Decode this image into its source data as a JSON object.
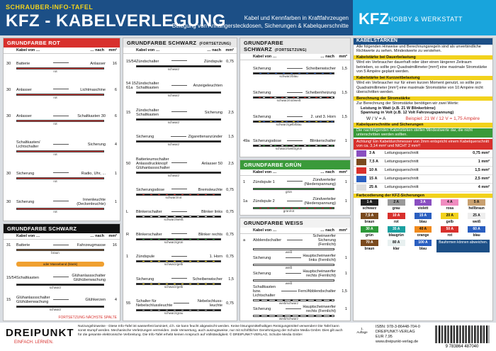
{
  "header": {
    "series": "SCHRAUBER-INFO-TAFEL",
    "title": "KFZ - KABELVERLEGUNG",
    "lines": [
      "Kabel und Kennfarben in Kraftfahrzeugen",
      "Belegung von Anhängersteckdosen, Sicherungen & Kabelquerschnitte"
    ]
  },
  "brand": {
    "kfz": "KFZ",
    "tag": "HOBBY & WERKSTATT"
  },
  "labels": {
    "from": "Kabel von …",
    "to": "… nach",
    "unit": "mm²"
  },
  "columns": [
    [
      {
        "title": "GRUNDFARBE ROT",
        "color": "#d8302c",
        "text_color": "#fff",
        "rows": [
          {
            "terminal": "30",
            "from": "Batterie",
            "to": "Anlasser",
            "mm": "16",
            "wires": [
              {
                "label": "rot",
                "colors": [
                  "#d8302c"
                ]
              }
            ]
          },
          {
            "terminal": "30",
            "from": "Anlasser",
            "to": "Lichtmaschine",
            "mm": "6",
            "wires": [
              {
                "label": "rot",
                "colors": [
                  "#d8302c"
                ]
              }
            ]
          },
          {
            "terminal": "30",
            "from": "Anlasser",
            "to": "Schaltkasten 30",
            "mm": "6",
            "wires": [
              {
                "label": "rot",
                "colors": [
                  "#d8302c"
                ]
              }
            ]
          },
          {
            "from": "Schaltkasten/ Lichtschalter",
            "to": "Sicherung",
            "mm": "4",
            "wires": [
              {
                "label": "rot",
                "colors": [
                  "#d8302c"
                ]
              }
            ]
          },
          {
            "terminal": "30",
            "from": "Sicherung",
            "to": "Radio, Uhr, ...",
            "mm": "1",
            "wires": [
              {
                "label": "rot",
                "colors": [
                  "#d8302c"
                ]
              }
            ]
          },
          {
            "terminal": "30",
            "from": "Sicherung",
            "to": "Innenleuchte (Deckenleuchte)",
            "mm": "1",
            "wires": [
              {
                "label": "rot",
                "colors": [
                  "#d8302c"
                ]
              }
            ]
          }
        ]
      },
      {
        "title": "GRUNDFARBE SCHWARZ",
        "color": "#111",
        "text_color": "#fff",
        "rows": [
          {
            "terminal": "31",
            "from": "Batterie",
            "to": "Fahrzeugmasse",
            "mm": "16",
            "wires": [
              {
                "label": "braun",
                "colors": [
                  "#7a4a1e"
                ]
              }
            ]
          },
          {
            "band": "oder Masseband (blank)"
          },
          {
            "terminal": "15/54",
            "from": "Schaltkasten",
            "to": "Glühanlassschalter Glühüberwachung",
            "wires": [
              {
                "label": "schwarz",
                "colors": [
                  "#111"
                ]
              }
            ]
          },
          {
            "terminal": "15",
            "from": "Glühanlassschalter Glühüberwachung",
            "to": "Glühkerzen",
            "mm": "4",
            "wires": [
              {
                "label": "schwarz",
                "colors": [
                  "#111"
                ]
              }
            ]
          }
        ],
        "note": "FORTSETZUNG NÄCHSTE SPALTE"
      }
    ],
    [
      {
        "title": "GRUNDFARBE SCHWARZ",
        "subtitle": "(FORTSETZUNG)",
        "color": "#e8e8e8",
        "text_color": "#111",
        "rows": [
          {
            "terminal": "15/54",
            "from": "Zündschalter",
            "to": "Zündspule",
            "mm": "0,75",
            "wires": [
              {
                "label": "schwarz",
                "colors": [
                  "#111"
                ]
              }
            ]
          },
          {
            "terminal": "54 15 61a",
            "from": "Zündschalter Schaltkasten",
            "to": "Anzeigeleuchten",
            "wires": [
              {
                "label": "schwarz",
                "colors": [
                  "#111"
                ]
              }
            ]
          },
          {
            "terminal": "15",
            "from": "Zündschalter Schaltkasten",
            "to": "Sicherung",
            "mm": "2,5",
            "wires": [
              {
                "label": "schwarz",
                "colors": [
                  "#111"
                ]
              }
            ]
          },
          {
            "from": "Sicherung",
            "to": "Zigarettenanzünder",
            "mm": "1,5",
            "wires": [
              {
                "label": "schwarz",
                "colors": [
                  "#111"
                ]
              }
            ]
          },
          {
            "terminal": "50",
            "from": "Batterieumschalter Anlassdruckknopf Glühanlassschalter",
            "to": "Anlasser 50",
            "mm": "2,5",
            "wires": [
              {
                "label": "schwarz",
                "colors": [
                  "#111"
                ]
              }
            ]
          },
          {
            "from": "Sicherungsdose",
            "to": "Bremsleuchte",
            "mm": "0,75",
            "wires": [
              {
                "label": "schwarz/rot",
                "colors": [
                  "#111",
                  "#d8302c"
                ]
              }
            ]
          },
          {
            "terminal": "L",
            "from": "Blinkerschalter",
            "to": "Blinker links",
            "mm": "0,75",
            "wires": [
              {
                "label": "schwarz/weiß",
                "colors": [
                  "#111",
                  "#fff"
                ]
              }
            ]
          },
          {
            "terminal": "R",
            "from": "Blinkerschalter",
            "to": "Blinker rechts",
            "mm": "0,75",
            "wires": [
              {
                "label": "schwarz/grün",
                "colors": [
                  "#111",
                  "#2e9a3a"
                ]
              }
            ]
          },
          {
            "terminal": "1",
            "from": "Zündspule",
            "to": "1. Horn",
            "mm": "0,75",
            "wires": [
              {
                "label": "schwarz/gelb",
                "colors": [
                  "#111",
                  "#f2d21c"
                ]
              }
            ]
          },
          {
            "from": "Sicherung",
            "to": "Scheibenwischer",
            "mm": "1,5",
            "wires": [
              {
                "label": "schwarz/gelb",
                "colors": [
                  "#111",
                  "#f2d21c"
                ]
              }
            ]
          },
          {
            "terminal": "55",
            "from": "Schalter für Nebelschlussleuchte",
            "to": "Nebelschluss-leuchte",
            "mm": "0,75",
            "wires": [
              {
                "label": "schwarz/grau",
                "colors": [
                  "#111",
                  "#999"
                ]
              }
            ]
          }
        ]
      }
    ],
    [
      {
        "title": "GRUNDFARBE SCHWARZ",
        "subtitle": "(FORTSETZUNG)",
        "color": "#e8e8e8",
        "text_color": "#111",
        "rows": [
          {
            "from": "Sicherung",
            "to": "Scheibenwischer",
            "mm": "1,5",
            "wires": [
              {
                "label": "schwarz/blau",
                "colors": [
                  "#111",
                  "#2a5fc0"
                ]
              }
            ]
          },
          {
            "from": "Sicherung",
            "to": "Scheibenheizung",
            "mm": "1,5",
            "wires": [
              {
                "label": "schwarz/rot/weiß",
                "colors": [
                  "#111",
                  "#d8302c",
                  "#fff"
                ]
              }
            ]
          },
          {
            "from": "Sicherung",
            "to": "2. und 3. Horn",
            "mm": "1,5",
            "wires": [
              {
                "label": "schwarz/gelb/blau",
                "colors": [
                  "#111",
                  "#f2d21c",
                  "#2a5fc0"
                ]
              }
            ]
          },
          {
            "terminal": "49a",
            "from": "Sicherungsdose",
            "to": "Blinkerschalter",
            "mm": "1",
            "wires": [
              {
                "label": "schwarz/weiß/grün",
                "colors": [
                  "#111",
                  "#fff",
                  "#2e9a3a"
                ]
              }
            ]
          }
        ]
      },
      {
        "title": "GRUNDFARBE GRÜN",
        "color": "#3a9a3a",
        "text_color": "#fff",
        "rows": [
          {
            "terminal": "1",
            "from": "Zündspule 1",
            "to": "Zündverteiler (Niederspannung)",
            "mm": "1",
            "wires": [
              {
                "label": "grün",
                "colors": [
                  "#2e9a3a"
                ]
              }
            ]
          },
          {
            "terminal": "1a",
            "from": "Zündspule 2",
            "to": "Zündverteiler (Niederspannung)",
            "mm": "1",
            "wires": [
              {
                "label": "grün/rot",
                "colors": [
                  "#2e9a3a",
                  "#d8302c"
                ]
              }
            ]
          }
        ]
      },
      {
        "title": "GRUNDFARBE WEISS",
        "color": "#f2f2f2",
        "text_color": "#111",
        "rows": [
          {
            "terminal": "a",
            "from": "Abblendschalter",
            "to": "Scheinwerfer Sicherung (Fernlicht)",
            "wires": [
              {
                "label": "weiß",
                "colors": [
                  "#fff"
                ]
              }
            ]
          },
          {
            "from": "Sicherung",
            "to": "Hauptscheinwerfer links (Fernlicht)",
            "mm": "1",
            "wires": [
              {
                "label": "weiß",
                "colors": [
                  "#fff"
                ]
              }
            ]
          },
          {
            "from": "Sicherung",
            "to": "Hauptscheinwerfer rechts (Fernlicht)",
            "mm": "1",
            "wires": [
              {
                "label": "weiß",
                "colors": [
                  "#fff"
                ]
              }
            ]
          },
          {
            "from": "Schaltkasten bzw. Lichtschalter",
            "to": "Fern/Abblendschalter",
            "mm": "1,5",
            "wires": [
              {
                "label": "weiß/schwarz",
                "colors": [
                  "#fff",
                  "#111"
                ]
              }
            ]
          },
          {
            "from": "Sicherung",
            "to": "Hauptscheinwerfer rechts (Fernlicht)",
            "mm": "1",
            "wires": [
              {
                "label": "weiß/schwarz",
                "colors": [
                  "#fff",
                  "#111"
                ]
              }
            ]
          }
        ]
      }
    ]
  ],
  "sidebar": {
    "title": "KABELSTÄRKEN",
    "intro": "Alle folgenden Hinweise und Berechnungsregeln sind als unverbindliche Richtwerte zu sehen. Mindestwerte zu verstehen.",
    "h1": "Kabelstärke bei Dauerbelastung",
    "p1": "Wird ein Verbraucher dauerhaft oder über einen längeren Zeitraum betrieben, so sollte pro Quadratmillimeter [mm²] eine maximale Stromstärke von 5 Ampère geplant werden.",
    "h2": "Kabelstärke bei Kurzzeitbelastung",
    "p2": "Wird ein Verbraucher nur für einen kurzen Moment genutzt, so sollte pro Quadratmillimeter [mm²] eine maximale Stromstärke von 10 Ampère nicht überschritten werden.",
    "h3": "Berechnung der Stromstärke",
    "p3": "Zur Berechnung der Stromstärke benötigen wir zwei Werte:",
    "bullets": [
      "Leistung in Watt (z.B. 21 W Blinkerbirne)",
      "Spannung in Volt (z.B. 12 Volt Fahrzeugspannung)"
    ],
    "formula": "W / V = A",
    "example": "Beispiel: 21 W / 12 V = 1,75 Ampère",
    "h4": "Kabelquerschnitte und Sicherungen",
    "p4": "Die nachfolgenden Kabelstärken stellen Mindestwerte dar, die nicht unterschritten werden sollten.",
    "warning": "Achtung! Ein Kabeldurchmesser von 2mm entspricht einem Kabelquerschnitt von ca. 3,14 mm² und NICHT 2 mm²!",
    "fuse_table": [
      {
        "amp": "3 A",
        "label": "Leitungsquerschnitt",
        "size": "0,75 mm²",
        "color": "#8a4fc0"
      },
      {
        "amp": "7,5 A",
        "label": "Leitungsquerschnitt",
        "size": "1 mm²",
        "color": "#7a4a1e"
      },
      {
        "amp": "10 A",
        "label": "Leitungsquerschnitt",
        "size": "1,5 mm²",
        "color": "#d8302c"
      },
      {
        "amp": "15 A",
        "label": "Leitungsquerschnitt",
        "size": "2,5 mm²",
        "color": "#2a5fc0"
      },
      {
        "amp": "25 A",
        "label": "Leitungsquerschnitt",
        "size": "4 mm²",
        "color": "#ddd"
      }
    ],
    "h5": "Farbcodierung der KFZ-Sicherungen",
    "fuses": [
      {
        "amp": "1 A",
        "name": "schwarz",
        "color": "#222"
      },
      {
        "amp": "2 A",
        "name": "grau",
        "color": "#999"
      },
      {
        "amp": "3 A",
        "name": "violett",
        "color": "#8a4fc0"
      },
      {
        "amp": "4 A",
        "name": "rosa",
        "color": "#f08cc0"
      },
      {
        "amp": "5 A",
        "name": "hellbraun",
        "color": "#c8a070"
      },
      {
        "amp": "7,5 A",
        "name": "braun",
        "color": "#7a4a1e"
      },
      {
        "amp": "10 A",
        "name": "rot",
        "color": "#d8302c"
      },
      {
        "amp": "15 A",
        "name": "blau",
        "color": "#2a5fc0"
      },
      {
        "amp": "20 A",
        "name": "gelb",
        "color": "#f2d21c"
      },
      {
        "amp": "25 A",
        "name": "weiß",
        "color": "#eee"
      },
      {
        "amp": "30 A",
        "name": "grün",
        "color": "#2e9a3a"
      },
      {
        "amp": "35 A",
        "name": "blaugrün",
        "color": "#1aa0a0"
      },
      {
        "amp": "40 A",
        "name": "orange",
        "color": "#f08a1c"
      },
      {
        "amp": "50 A",
        "name": "rot",
        "color": "#d8302c"
      },
      {
        "amp": "60 A",
        "name": "blau",
        "color": "#2a5fc0"
      },
      {
        "amp": "70 A",
        "name": "braun",
        "color": "#7a4a1e"
      },
      {
        "amp": "80 A",
        "name": "klar",
        "color": "#e8f0f0"
      },
      {
        "amp": "100 A",
        "name": "blau",
        "color": "#2a5fc0"
      }
    ],
    "shape_note": "Bauformen können abweichen."
  },
  "footer": {
    "logo": "DREIPUNKT",
    "slogan": "EINFACH. LERNEN.",
    "text": "Nutzungshinweise - Diese Info-Tafel ist wasserfest laminiert, d.h. sie kann feucht abgewischt werden. Keine lösungsmittelhaltigen Reinigungsmittel verwenden! Die Tafel kann sonst stumpf werden. Mechanische Verletzungen vermeiden. Jede Verwertung, auch auszugsweise, nur mit schriftlicher Genehmigung der Schulze Media GmbH. Dies gilt auch für die gesamte elektronische Verbreitung. Die Info-Tafel erhebt keinen Anspruch auf Vollständigkeit. © DREIPUNKT-VERLAG, Schulze Media GmbH",
    "age": "1. Auflage",
    "isbn": "ISBN: 978-3-86448-704-0",
    "publisher": "DREIPUNKT-VERLAG",
    "price": "EUR 7,95",
    "web": "www.dreipunkt-verlag.de",
    "barcode": "9 783864 487040"
  }
}
